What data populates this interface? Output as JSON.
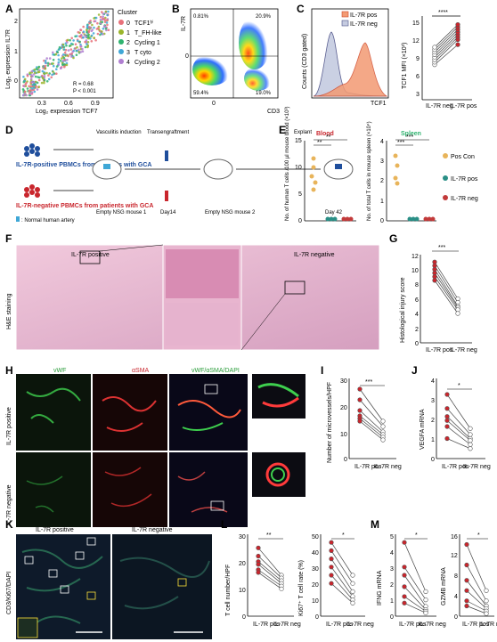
{
  "panels": {
    "A": {
      "letter": "A",
      "ylabel": "Log₂ expression IL7R",
      "xlabel": "Log₂ expression TCF7",
      "legend_title": "Cluster",
      "legend": [
        {
          "id": "0",
          "name": "TCF1ʰⁱ",
          "color": "#e8717a"
        },
        {
          "id": "1",
          "name": "T_FH-like",
          "color": "#9ab52a"
        },
        {
          "id": "2",
          "name": "Cycling 1",
          "color": "#2fb36f"
        },
        {
          "id": "3",
          "name": "T cyto",
          "color": "#3fa7d6"
        },
        {
          "id": "4",
          "name": "Cycling 2",
          "color": "#b07fd1"
        }
      ],
      "stats": [
        "R = 0.68",
        "P < 0.001"
      ],
      "xticks": [
        "0.3",
        "0.6",
        "0.9"
      ],
      "yticks": [
        "0",
        "1",
        "2"
      ]
    },
    "B": {
      "letter": "B",
      "ylabel": "IL-7R",
      "xlabel": "CD3",
      "q_tl": "0.81%",
      "q_tr": "20.9%",
      "q_bl": "59.4%",
      "q_br": "19.0%",
      "tick0x": "0",
      "tick0y": "0"
    },
    "C": {
      "letter": "C",
      "legend": [
        "IL-7R pos",
        "IL-7R neg"
      ],
      "ylabel": "Counts (CD3 gated)",
      "xlabel": "TCF1",
      "sig": "****",
      "ylabel2": "TCF1 MFI (×10³)",
      "cats": [
        "IL-7R neg",
        "IL-7R pos"
      ],
      "yticks": [
        "3",
        "6",
        "9",
        "12",
        "15"
      ]
    },
    "D": {
      "letter": "D",
      "pos_label": "IL-7R-positive PBMCs from patients with GCA",
      "neg_label": "IL-7R-negative PBMCs from patients with GCA",
      "artery_note": ": Normal human artery",
      "steps": [
        "Vasculitis induction",
        "Transengraftment",
        "Explant"
      ],
      "mice": [
        "Empty NSG mouse 1",
        "Day14",
        "Empty NSG mouse 2",
        "Day 42"
      ]
    },
    "E": {
      "letter": "E",
      "blood_title": "Blood",
      "spleen_title": "Spleen",
      "blood_ylabel": "No. of human T cells /100 µl mouse blood (×10³)",
      "spleen_ylabel": "No. of total T cells in mouse spleen (×10⁴)",
      "blood_yticks": [
        "0",
        "5",
        "10",
        "15"
      ],
      "spleen_yticks": [
        "0",
        "1",
        "2",
        "3",
        "4"
      ],
      "sig_blood": [
        "**",
        "**"
      ],
      "sig_spleen": [
        "***",
        "***"
      ],
      "legend": [
        {
          "name": "Pos Con",
          "color": "#e8b45a"
        },
        {
          "name": "IL-7R pos",
          "color": "#2a8f86"
        },
        {
          "name": "IL-7R neg",
          "color": "#c23a3a"
        }
      ]
    },
    "F": {
      "letter": "F",
      "side": "H&E staining",
      "pos_title": "IL-7R positive",
      "neg_title": "IL-7R negative"
    },
    "G": {
      "letter": "G",
      "sig": "***",
      "ylabel": "Histological injury score",
      "cats": [
        "IL-7R pos",
        "IL-7R neg"
      ],
      "yticks": [
        "0",
        "2",
        "4",
        "6",
        "8",
        "10",
        "12"
      ]
    },
    "H": {
      "letter": "H",
      "cols": [
        "vWF",
        "αSMA",
        "vWF/αSMA/DAPI"
      ],
      "rows": [
        "IL-7R positive",
        "IL-7R negative"
      ]
    },
    "I": {
      "letter": "I",
      "sig": "***",
      "ylabel": "Number of microvessels/HPF",
      "cats": [
        "IL-7R pos",
        "IL-7R neg"
      ],
      "yticks": [
        "0",
        "10",
        "20",
        "30"
      ]
    },
    "J": {
      "letter": "J",
      "sig": "*",
      "ylabel": "VEGFA mRNA",
      "cats": [
        "IL-7R pos",
        "IL-7R neg"
      ],
      "yticks": [
        "0",
        "1",
        "2",
        "3",
        "4"
      ]
    },
    "K": {
      "letter": "K",
      "side": "CD3/Ki67/DAPI",
      "pos_title": "IL-7R positive",
      "neg_title": "IL-7R negative"
    },
    "L": {
      "letter": "L",
      "sig1": "**",
      "sig2": "*",
      "ylabel1": "T cell number/HPF",
      "ylabel2": "Ki67⁺ T cell rate (%)",
      "cats": [
        "IL-7R pos",
        "IL-7R neg"
      ],
      "yticks1": [
        "0",
        "10",
        "20",
        "30"
      ],
      "yticks2": [
        "0",
        "10",
        "20",
        "30",
        "40",
        "50"
      ]
    },
    "M": {
      "letter": "M",
      "sig1": "*",
      "sig2": "*",
      "ylabel1": "IFNG mRNA",
      "ylabel2": "GZMB mRNA",
      "cats": [
        "IL-7R pos",
        "IL-7R neg"
      ],
      "yticks1": [
        "0",
        "1",
        "2",
        "3",
        "4",
        "5"
      ],
      "yticks2": [
        "0",
        "4",
        "8",
        "12",
        "16"
      ]
    }
  },
  "chart_data": [
    {
      "type": "line",
      "panel": "C",
      "series": [
        {
          "name": "IL-7R neg",
          "values": [
            7,
            7.5,
            8,
            8.5,
            9,
            9.5,
            10,
            10.5
          ]
        },
        {
          "name": "IL-7R pos",
          "values": [
            11,
            12,
            12.5,
            13,
            13.5,
            14,
            14.5,
            15
          ]
        }
      ]
    },
    {
      "type": "line",
      "panel": "G",
      "series": [
        {
          "name": "IL-7R pos",
          "values": [
            11,
            10.5,
            10,
            9.5,
            9,
            8.5
          ]
        },
        {
          "name": "IL-7R neg",
          "values": [
            6,
            5.5,
            5,
            4.8,
            4.5,
            4
          ]
        }
      ]
    },
    {
      "type": "line",
      "panel": "I",
      "series": [
        {
          "name": "IL-7R pos",
          "values": [
            26,
            22,
            18,
            16,
            15,
            14
          ]
        },
        {
          "name": "IL-7R neg",
          "values": [
            14,
            12,
            10,
            9,
            8,
            7
          ]
        }
      ]
    },
    {
      "type": "line",
      "panel": "J",
      "series": [
        {
          "name": "IL-7R pos",
          "values": [
            3.2,
            2.5,
            2.1,
            1.9,
            1.6,
            1.0
          ]
        },
        {
          "name": "IL-7R neg",
          "values": [
            1.5,
            1.2,
            1.0,
            0.9,
            0.7,
            0.5
          ]
        }
      ]
    },
    {
      "type": "line",
      "panel": "L1",
      "series": [
        {
          "name": "IL-7R pos",
          "values": [
            25,
            22,
            20,
            19,
            17,
            16
          ]
        },
        {
          "name": "IL-7R neg",
          "values": [
            15,
            14,
            13,
            12,
            11,
            10
          ]
        }
      ]
    },
    {
      "type": "line",
      "panel": "L2",
      "series": [
        {
          "name": "IL-7R pos",
          "values": [
            45,
            40,
            35,
            30,
            25,
            20
          ]
        },
        {
          "name": "IL-7R neg",
          "values": [
            25,
            20,
            15,
            12,
            10,
            8
          ]
        }
      ]
    },
    {
      "type": "line",
      "panel": "M1",
      "series": [
        {
          "name": "IL-7R pos",
          "values": [
            4.5,
            3,
            2.5,
            1.8,
            1.2,
            0.8
          ]
        },
        {
          "name": "IL-7R neg",
          "values": [
            1.5,
            1,
            0.6,
            0.4,
            0.3,
            0.2
          ]
        }
      ]
    },
    {
      "type": "line",
      "panel": "M2",
      "series": [
        {
          "name": "IL-7R pos",
          "values": [
            14,
            10,
            7,
            5,
            3,
            2
          ]
        },
        {
          "name": "IL-7R neg",
          "values": [
            5,
            3,
            2,
            1.5,
            1,
            0.5
          ]
        }
      ]
    }
  ]
}
